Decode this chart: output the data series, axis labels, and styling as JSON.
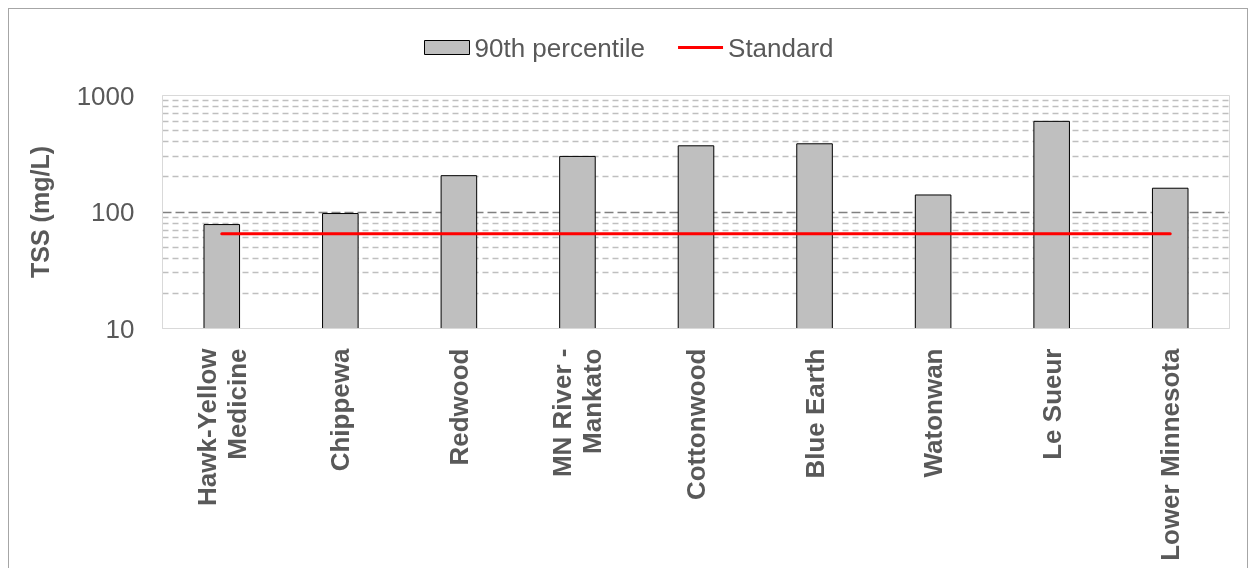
{
  "chart_data": {
    "type": "bar",
    "ylabel": "TSS (mg/L)",
    "categories": [
      "Hawk-Yellow\nMedicine",
      "Chippewa",
      "Redwood",
      "MN River -\nMankato",
      "Cottonwood",
      "Blue Earth",
      "Watonwan",
      "Le Sueur",
      "Lower Minnesota"
    ],
    "series": [
      {
        "name": "90th percentile",
        "color": "#bfbfbf",
        "values": [
          78,
          97,
          205,
          300,
          370,
          385,
          140,
          600,
          160
        ]
      },
      {
        "name": "Standard",
        "type": "line",
        "color": "#ff0000",
        "values": [
          65,
          65,
          65,
          65,
          65,
          65,
          65,
          65,
          65
        ]
      }
    ],
    "log": true,
    "ylim": [
      10,
      1000
    ],
    "yticks": [
      10,
      {
        "value": 20,
        "label": null
      },
      {
        "value": 30,
        "label": null
      },
      {
        "value": 40,
        "label": null
      },
      {
        "value": 50,
        "label": null
      },
      {
        "value": 60,
        "label": null
      },
      {
        "value": 70,
        "label": null
      },
      {
        "value": 80,
        "label": null
      },
      {
        "value": 90,
        "label": null
      },
      100,
      {
        "value": 200,
        "label": null
      },
      {
        "value": 300,
        "label": null
      },
      {
        "value": 400,
        "label": null
      },
      {
        "value": 500,
        "label": null
      },
      {
        "value": 600,
        "label": null
      },
      {
        "value": 700,
        "label": null
      },
      {
        "value": 800,
        "label": null
      },
      {
        "value": 900,
        "label": null
      },
      1000
    ],
    "grid": "y",
    "legend": "top",
    "marker": "none",
    "line_style": "solid"
  }
}
